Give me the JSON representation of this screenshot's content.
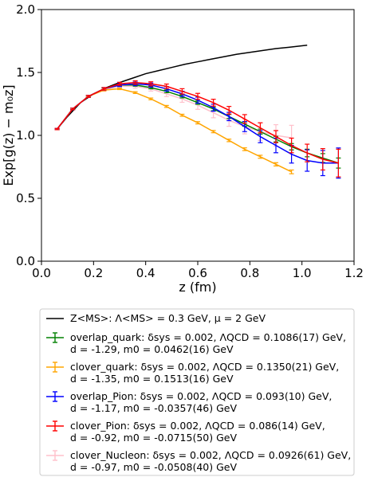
{
  "chart_data": {
    "type": "line",
    "xlabel": "z (fm)",
    "ylabel": "Exp[g(z) − m₀z]",
    "xlim": [
      0.0,
      1.2
    ],
    "ylim": [
      0.0,
      2.0
    ],
    "xticks": [
      "0.0",
      "0.2",
      "0.4",
      "0.6",
      "0.8",
      "1.0",
      "1.2"
    ],
    "yticks": [
      "0.0",
      "0.5",
      "1.0",
      "1.5",
      "2.0"
    ],
    "grid": false,
    "legend_placement": "below",
    "series": [
      {
        "name": "Z_MS: Λ_MS = 0.3 GeV, μ = 2 GeV",
        "legend_lines": [
          "Z<MS>: Λ<MS> = 0.3 GeV, μ = 2 GeV"
        ],
        "color": "#000000",
        "style": "line",
        "x": [
          0.06,
          0.1,
          0.15,
          0.2,
          0.25,
          0.3,
          0.35,
          0.4,
          0.45,
          0.5,
          0.55,
          0.6,
          0.65,
          0.7,
          0.75,
          0.8,
          0.85,
          0.9,
          0.95,
          1.0,
          1.02
        ],
        "y": [
          1.05,
          1.15,
          1.26,
          1.33,
          1.38,
          1.42,
          1.455,
          1.49,
          1.515,
          1.54,
          1.565,
          1.585,
          1.605,
          1.625,
          1.645,
          1.66,
          1.675,
          1.69,
          1.7,
          1.712,
          1.717
        ]
      },
      {
        "name": "overlap_quark",
        "legend_lines": [
          "overlap_quark: δsys = 0.002, ΛQCD = 0.1086(17) GeV,",
          " d = -1.29, m0 = 0.0462(16) GeV"
        ],
        "color": "#008000",
        "style": "errorbar",
        "x": [
          0.06,
          0.12,
          0.18,
          0.24,
          0.3,
          0.36,
          0.42,
          0.48,
          0.54,
          0.6,
          0.66,
          0.72,
          0.78,
          0.84,
          0.9,
          0.96,
          1.02,
          1.08,
          1.14
        ],
        "y": [
          1.05,
          1.21,
          1.31,
          1.37,
          1.4,
          1.4,
          1.38,
          1.35,
          1.31,
          1.26,
          1.21,
          1.15,
          1.09,
          1.03,
          0.97,
          0.91,
          0.86,
          0.82,
          0.78
        ],
        "err": [
          0.005,
          0.005,
          0.006,
          0.007,
          0.008,
          0.009,
          0.01,
          0.011,
          0.012,
          0.013,
          0.014,
          0.016,
          0.018,
          0.02,
          0.022,
          0.025,
          0.03,
          0.035,
          0.04
        ]
      },
      {
        "name": "clover_quark",
        "legend_lines": [
          "clover_quark: δsys = 0.002, ΛQCD = 0.1350(21) GeV,",
          " d = -1.35, m0 = 0.1513(16) GeV"
        ],
        "color": "#FFA500",
        "style": "errorbar",
        "x": [
          0.06,
          0.12,
          0.18,
          0.24,
          0.3,
          0.36,
          0.42,
          0.48,
          0.54,
          0.6,
          0.66,
          0.72,
          0.78,
          0.84,
          0.9,
          0.96
        ],
        "y": [
          1.05,
          1.21,
          1.31,
          1.36,
          1.37,
          1.34,
          1.29,
          1.23,
          1.16,
          1.1,
          1.03,
          0.96,
          0.89,
          0.83,
          0.77,
          0.71
        ],
        "err": [
          0.005,
          0.005,
          0.005,
          0.006,
          0.006,
          0.007,
          0.007,
          0.008,
          0.008,
          0.009,
          0.009,
          0.01,
          0.011,
          0.012,
          0.013,
          0.015
        ]
      },
      {
        "name": "overlap_Pion",
        "legend_lines": [
          "overlap_Pion: δsys = 0.002, ΛQCD = 0.093(10) GeV,",
          " d = -1.17, m0 = -0.0357(46) GeV"
        ],
        "color": "#0000FF",
        "style": "errorbar",
        "x": [
          0.06,
          0.12,
          0.18,
          0.24,
          0.3,
          0.36,
          0.42,
          0.48,
          0.54,
          0.6,
          0.66,
          0.72,
          0.78,
          0.84,
          0.9,
          0.96,
          1.02,
          1.08,
          1.14
        ],
        "y": [
          1.05,
          1.21,
          1.31,
          1.37,
          1.4,
          1.41,
          1.4,
          1.37,
          1.33,
          1.28,
          1.22,
          1.15,
          1.07,
          0.99,
          0.92,
          0.85,
          0.8,
          0.78,
          0.78
        ],
        "err": [
          0.005,
          0.006,
          0.008,
          0.01,
          0.012,
          0.014,
          0.016,
          0.018,
          0.021,
          0.024,
          0.028,
          0.033,
          0.04,
          0.048,
          0.058,
          0.07,
          0.085,
          0.1,
          0.12
        ]
      },
      {
        "name": "clover_Pion",
        "legend_lines": [
          "clover_Pion: δsys = 0.002, ΛQCD = 0.086(14) GeV,",
          " d = -0.92, m0 = -0.0715(50) GeV"
        ],
        "color": "#FF0000",
        "style": "errorbar",
        "x": [
          0.06,
          0.12,
          0.18,
          0.24,
          0.3,
          0.36,
          0.42,
          0.48,
          0.54,
          0.6,
          0.66,
          0.72,
          0.78,
          0.84,
          0.9,
          0.96,
          1.02,
          1.08,
          1.14
        ],
        "y": [
          1.05,
          1.21,
          1.31,
          1.37,
          1.41,
          1.42,
          1.41,
          1.39,
          1.35,
          1.31,
          1.26,
          1.2,
          1.13,
          1.06,
          0.99,
          0.92,
          0.86,
          0.81,
          0.78
        ],
        "err": [
          0.005,
          0.006,
          0.008,
          0.01,
          0.012,
          0.014,
          0.016,
          0.018,
          0.021,
          0.024,
          0.027,
          0.03,
          0.035,
          0.04,
          0.048,
          0.058,
          0.07,
          0.085,
          0.11
        ]
      },
      {
        "name": "clover_Nucleon",
        "legend_lines": [
          "clover_Nucleon: δsys = 0.002, ΛQCD = 0.0926(61) GeV,",
          " d = -0.97, m0 = -0.0508(40) GeV"
        ],
        "color": "#FFC0CB",
        "style": "errorbar",
        "x": [
          0.06,
          0.12,
          0.18,
          0.24,
          0.3,
          0.36,
          0.42,
          0.48,
          0.54,
          0.6,
          0.66,
          0.72,
          0.78,
          0.84,
          0.9,
          0.96
        ],
        "y": [
          1.05,
          1.21,
          1.31,
          1.36,
          1.39,
          1.39,
          1.37,
          1.33,
          1.29,
          1.24,
          1.18,
          1.12,
          1.07,
          1.03,
          1.0,
          0.98
        ],
        "err": [
          0.005,
          0.006,
          0.008,
          0.01,
          0.012,
          0.015,
          0.018,
          0.022,
          0.027,
          0.033,
          0.04,
          0.048,
          0.058,
          0.07,
          0.085,
          0.1
        ]
      }
    ]
  }
}
